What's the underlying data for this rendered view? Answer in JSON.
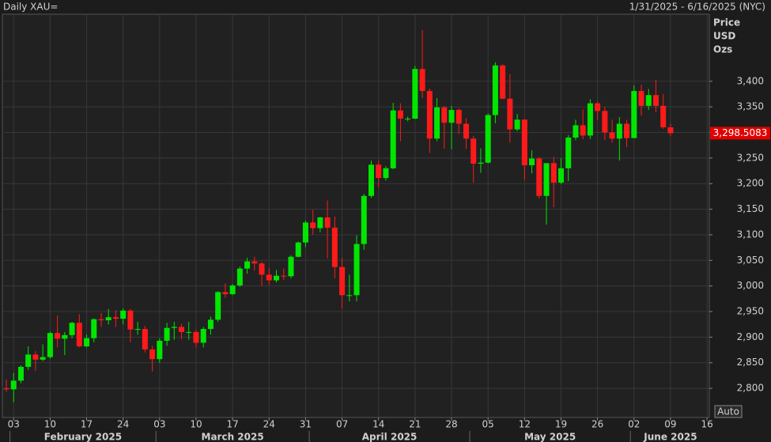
{
  "chart_data": {
    "type": "candlestick",
    "title": "Daily XAU=",
    "date_range": "1/31/2025 - 6/16/2025 (NYC)",
    "y_axis_label": [
      "Price",
      "USD",
      "Ozs"
    ],
    "button": "Auto",
    "up_color": "#00e600",
    "down_color": "#ff1a1a",
    "grid": true,
    "x": [
      "2025-01-31",
      "2025-02-03",
      "2025-02-04",
      "2025-02-05",
      "2025-02-06",
      "2025-02-07",
      "2025-02-10",
      "2025-02-11",
      "2025-02-12",
      "2025-02-13",
      "2025-02-14",
      "2025-02-17",
      "2025-02-18",
      "2025-02-19",
      "2025-02-20",
      "2025-02-21",
      "2025-02-24",
      "2025-02-25",
      "2025-02-26",
      "2025-02-27",
      "2025-02-28",
      "2025-03-03",
      "2025-03-04",
      "2025-03-05",
      "2025-03-06",
      "2025-03-07",
      "2025-03-10",
      "2025-03-11",
      "2025-03-12",
      "2025-03-13",
      "2025-03-14",
      "2025-03-17",
      "2025-03-18",
      "2025-03-19",
      "2025-03-20",
      "2025-03-21",
      "2025-03-24",
      "2025-03-25",
      "2025-03-26",
      "2025-03-27",
      "2025-03-28",
      "2025-03-31",
      "2025-04-01",
      "2025-04-02",
      "2025-04-03",
      "2025-04-04",
      "2025-04-07",
      "2025-04-08",
      "2025-04-09",
      "2025-04-10",
      "2025-04-11",
      "2025-04-14",
      "2025-04-15",
      "2025-04-16",
      "2025-04-17",
      "2025-04-18",
      "2025-04-21",
      "2025-04-22",
      "2025-04-23",
      "2025-04-24",
      "2025-04-25",
      "2025-04-28",
      "2025-04-29",
      "2025-04-30",
      "2025-05-01",
      "2025-05-02",
      "2025-05-05",
      "2025-05-06",
      "2025-05-07",
      "2025-05-08",
      "2025-05-09",
      "2025-05-12",
      "2025-05-13",
      "2025-05-14",
      "2025-05-15",
      "2025-05-16",
      "2025-05-19",
      "2025-05-20",
      "2025-05-21",
      "2025-05-22",
      "2025-05-23",
      "2025-05-26",
      "2025-05-27",
      "2025-05-28",
      "2025-05-29",
      "2025-05-30",
      "2025-06-02",
      "2025-06-03",
      "2025-06-04",
      "2025-06-05",
      "2025-06-06",
      "2025-06-09"
    ],
    "open": [
      2800,
      2798,
      2815,
      2842,
      2866,
      2856,
      2861,
      2908,
      2897,
      2904,
      2928,
      2882,
      2898,
      2935,
      2933,
      2939,
      2936,
      2952,
      2915,
      2916,
      2876,
      2857,
      2893,
      2918,
      2920,
      2910,
      2910,
      2889,
      2916,
      2934,
      2988,
      2984,
      3001,
      3034,
      3048,
      3044,
      3022,
      3011,
      3020,
      3019,
      3057,
      3085,
      3124,
      3113,
      3134,
      3114,
      3037,
      2982,
      2982,
      3082,
      3176,
      3237,
      3211,
      3230,
      3343,
      3327,
      3327,
      3424,
      3381,
      3288,
      3349,
      3319,
      3344,
      3317,
      3288,
      3239,
      3241,
      3334,
      3431,
      3366,
      3306,
      3325,
      3236,
      3249,
      3176,
      3240,
      3202,
      3230,
      3290,
      3314,
      3294,
      3357,
      3342,
      3300,
      3288,
      3317,
      3289,
      3381,
      3352,
      3373,
      3352,
      3310
    ],
    "high": [
      2817,
      2830,
      2845,
      2882,
      2873,
      2886,
      2911,
      2942,
      2910,
      2930,
      2945,
      2905,
      2937,
      2947,
      2955,
      2953,
      2956,
      2955,
      2930,
      2922,
      2883,
      2898,
      2928,
      2930,
      2926,
      2930,
      2915,
      2920,
      2940,
      2990,
      3005,
      3004,
      3038,
      3055,
      3057,
      3047,
      3035,
      3031,
      3034,
      3060,
      3087,
      3128,
      3149,
      3135,
      3167,
      3136,
      3055,
      3022,
      3099,
      3180,
      3245,
      3245,
      3234,
      3358,
      3357,
      3331,
      3430,
      3500,
      3386,
      3367,
      3352,
      3352,
      3347,
      3328,
      3293,
      3269,
      3337,
      3437,
      3433,
      3414,
      3336,
      3326,
      3265,
      3252,
      3240,
      3252,
      3250,
      3295,
      3325,
      3345,
      3365,
      3360,
      3350,
      3325,
      3330,
      3325,
      3392,
      3393,
      3385,
      3403,
      3375,
      3317
    ],
    "low": [
      2793,
      2773,
      2810,
      2836,
      2834,
      2853,
      2858,
      2880,
      2865,
      2898,
      2880,
      2880,
      2890,
      2920,
      2925,
      2920,
      2925,
      2890,
      2905,
      2870,
      2833,
      2850,
      2883,
      2895,
      2896,
      2895,
      2880,
      2880,
      2905,
      2930,
      2977,
      2982,
      2998,
      3024,
      3030,
      3000,
      3002,
      3007,
      3012,
      3015,
      3056,
      3076,
      3100,
      3105,
      3054,
      3015,
      2956,
      2970,
      2970,
      3071,
      3172,
      3193,
      3206,
      3228,
      3283,
      3322,
      3326,
      3367,
      3260,
      3283,
      3268,
      3267,
      3297,
      3268,
      3202,
      3221,
      3239,
      3318,
      3365,
      3280,
      3303,
      3207,
      3220,
      3171,
      3120,
      3154,
      3199,
      3205,
      3285,
      3287,
      3287,
      3324,
      3285,
      3280,
      3245,
      3271,
      3289,
      3333,
      3344,
      3339,
      3307,
      3293
    ],
    "close": [
      2798,
      2815,
      2842,
      2866,
      2856,
      2861,
      2908,
      2897,
      2904,
      2928,
      2882,
      2898,
      2935,
      2933,
      2939,
      2936,
      2952,
      2915,
      2916,
      2876,
      2857,
      2893,
      2918,
      2920,
      2910,
      2910,
      2889,
      2916,
      2934,
      2988,
      2984,
      3001,
      3034,
      3048,
      3044,
      3022,
      3011,
      3020,
      3019,
      3057,
      3085,
      3124,
      3113,
      3134,
      3114,
      3037,
      2982,
      2982,
      3082,
      3176,
      3237,
      3211,
      3230,
      3343,
      3327,
      3327,
      3424,
      3381,
      3288,
      3349,
      3319,
      3344,
      3317,
      3288,
      3239,
      3241,
      3334,
      3431,
      3366,
      3306,
      3325,
      3236,
      3249,
      3176,
      3240,
      3202,
      3230,
      3290,
      3314,
      3294,
      3357,
      3342,
      3300,
      3288,
      3317,
      3289,
      3381,
      3352,
      3373,
      3352,
      3310,
      3298.5083
    ],
    "last_price": {
      "value": 3298.5083,
      "label": "3,298.5083"
    },
    "ylim": [
      2743,
      3531
    ],
    "yticks": [
      {
        "value": 2800,
        "label": "2,800"
      },
      {
        "value": 2850,
        "label": "2,850"
      },
      {
        "value": 2900,
        "label": "2,900"
      },
      {
        "value": 2950,
        "label": "2,950"
      },
      {
        "value": 3000,
        "label": "3,000"
      },
      {
        "value": 3050,
        "label": "3,050"
      },
      {
        "value": 3100,
        "label": "3,100"
      },
      {
        "value": 3150,
        "label": "3,150"
      },
      {
        "value": 3200,
        "label": "3,200"
      },
      {
        "value": 3250,
        "label": "3,250"
      },
      {
        "value": 3300,
        "label": "3,300"
      },
      {
        "value": 3350,
        "label": "3,350"
      },
      {
        "value": 3400,
        "label": "3,400"
      }
    ],
    "xticks": [
      {
        "value": "2025-02-03",
        "label": "03"
      },
      {
        "value": "2025-02-10",
        "label": "10"
      },
      {
        "value": "2025-02-17",
        "label": "17"
      },
      {
        "value": "2025-02-24",
        "label": "24"
      },
      {
        "value": "2025-03-03",
        "label": "03"
      },
      {
        "value": "2025-03-10",
        "label": "10"
      },
      {
        "value": "2025-03-17",
        "label": "17"
      },
      {
        "value": "2025-03-24",
        "label": "24"
      },
      {
        "value": "2025-03-31",
        "label": "31"
      },
      {
        "value": "2025-04-07",
        "label": "07"
      },
      {
        "value": "2025-04-14",
        "label": "14"
      },
      {
        "value": "2025-04-21",
        "label": "21"
      },
      {
        "value": "2025-04-28",
        "label": "28"
      },
      {
        "value": "2025-05-05",
        "label": "05"
      },
      {
        "value": "2025-05-12",
        "label": "12"
      },
      {
        "value": "2025-05-19",
        "label": "19"
      },
      {
        "value": "2025-05-26",
        "label": "26"
      },
      {
        "value": "2025-06-02",
        "label": "02"
      },
      {
        "value": "2025-06-09",
        "label": "09"
      },
      {
        "value": "2025-06-16",
        "label": "16"
      }
    ],
    "months": [
      "February 2025",
      "March 2025",
      "April 2025",
      "May 2025",
      "June 2025"
    ]
  }
}
